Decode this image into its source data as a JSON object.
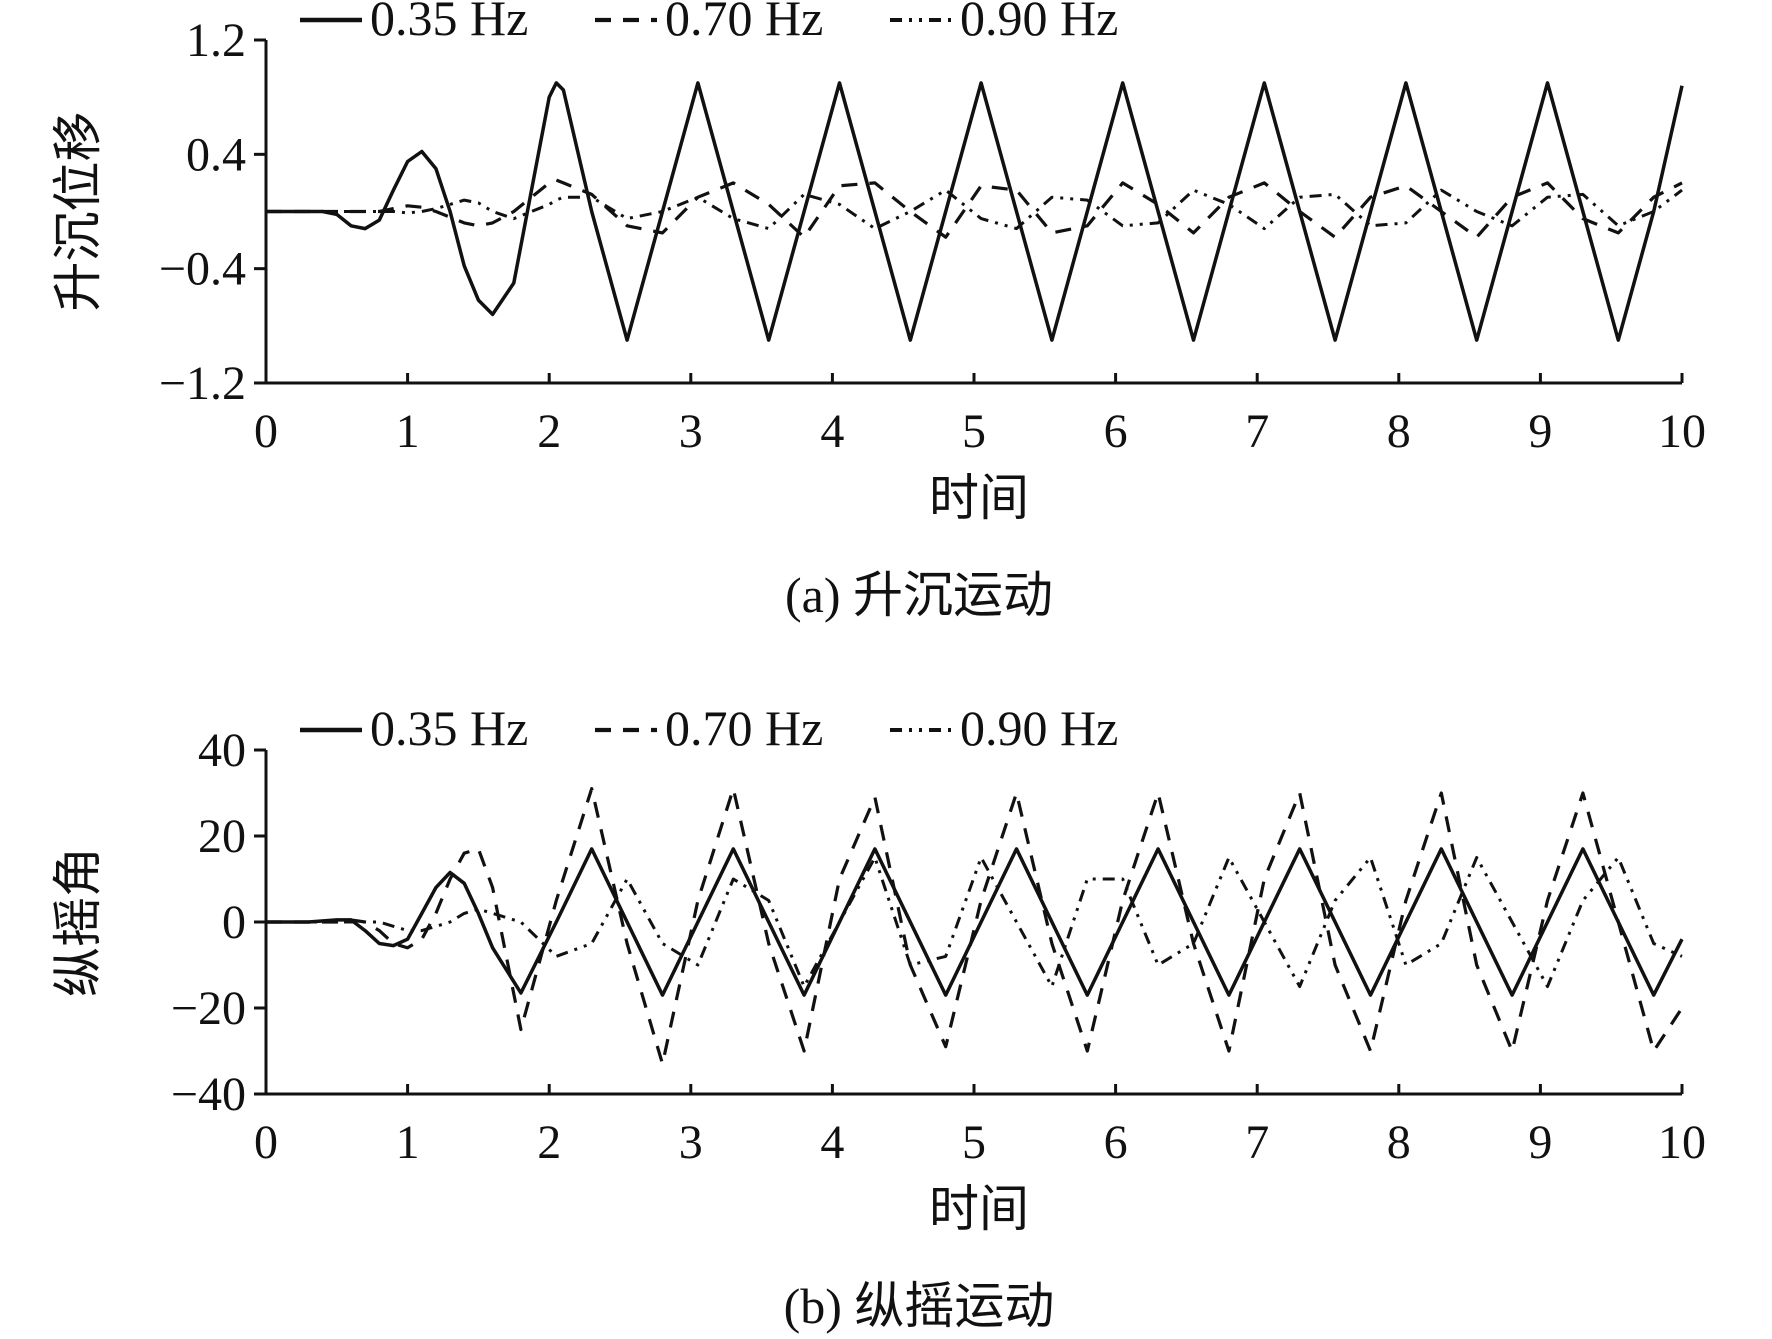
{
  "chart_data": [
    {
      "type": "line",
      "caption": "(a) 升沉运动",
      "xlabel": "时间",
      "ylabel": "升沉位移",
      "xlim": [
        0,
        10
      ],
      "ylim": [
        -1.2,
        1.2
      ],
      "x_ticks": [
        "0",
        "1",
        "2",
        "3",
        "4",
        "5",
        "6",
        "7",
        "8",
        "9",
        "10"
      ],
      "y_ticks": [
        "1.2",
        "0.4",
        "−0.4",
        "−1.2"
      ],
      "y_tick_values": [
        1.2,
        0.4,
        -0.4,
        -1.2
      ],
      "legend_position": "top",
      "grid": false,
      "x": [
        0,
        0.2,
        0.4,
        0.5,
        0.6,
        0.7,
        0.8,
        0.9,
        1.0,
        1.1,
        1.2,
        1.3,
        1.4,
        1.5,
        1.6,
        1.75,
        2.0,
        2.05,
        2.1,
        2.3,
        2.55,
        2.8,
        3.05,
        3.3,
        3.55,
        3.8,
        4.05,
        4.3,
        4.55,
        4.8,
        5.05,
        5.3,
        5.55,
        5.8,
        6.05,
        6.3,
        6.55,
        6.8,
        7.05,
        7.3,
        7.55,
        7.8,
        8.05,
        8.3,
        8.55,
        8.8,
        9.05,
        9.3,
        9.55,
        9.8,
        10.0
      ],
      "series": [
        {
          "name": "0.35 Hz",
          "style": "solid",
          "values": [
            0,
            0,
            0,
            -0.02,
            -0.1,
            -0.12,
            -0.06,
            0.15,
            0.35,
            0.42,
            0.3,
            0.0,
            -0.38,
            -0.62,
            -0.72,
            -0.5,
            0.8,
            0.9,
            0.85,
            0.0,
            -0.9,
            0.0,
            0.9,
            0.0,
            -0.9,
            0.0,
            0.9,
            0.0,
            -0.9,
            0.0,
            0.9,
            0.0,
            -0.9,
            0.0,
            0.9,
            0.0,
            -0.9,
            0.0,
            0.9,
            0.0,
            -0.9,
            0.0,
            0.9,
            0.0,
            -0.9,
            0.0,
            0.9,
            0.0,
            -0.9,
            0.0,
            0.88
          ]
        },
        {
          "name": "0.70 Hz",
          "style": "dashed",
          "values": [
            0,
            0,
            0,
            0,
            0,
            0,
            0,
            0.02,
            0.04,
            0.03,
            0.0,
            -0.04,
            -0.08,
            -0.1,
            -0.08,
            0.0,
            0.2,
            0.22,
            0.2,
            0.12,
            -0.1,
            -0.15,
            0.1,
            0.2,
            0.05,
            -0.18,
            0.18,
            0.2,
            0.0,
            -0.18,
            0.18,
            0.15,
            -0.15,
            -0.1,
            0.2,
            0.05,
            -0.15,
            0.1,
            0.2,
            0.0,
            -0.18,
            0.1,
            0.18,
            0.0,
            -0.18,
            0.1,
            0.2,
            -0.05,
            -0.15,
            0.1,
            0.2
          ]
        },
        {
          "name": "0.90 Hz",
          "style": "dash-dot-dot",
          "values": [
            0,
            0,
            0,
            0,
            0,
            0,
            0,
            0,
            -0.01,
            0.0,
            0.02,
            0.05,
            0.08,
            0.06,
            0.0,
            -0.05,
            0.05,
            0.08,
            0.1,
            0.1,
            -0.05,
            0.0,
            0.1,
            -0.05,
            -0.12,
            0.12,
            0.05,
            -0.12,
            0.0,
            0.15,
            -0.05,
            -0.12,
            0.1,
            0.08,
            -0.1,
            -0.08,
            0.15,
            0.05,
            -0.12,
            0.1,
            0.12,
            -0.1,
            -0.08,
            0.15,
            0.0,
            -0.1,
            0.1,
            0.12,
            -0.1,
            0.0,
            0.15
          ]
        }
      ]
    },
    {
      "type": "line",
      "caption": "(b) 纵摇运动",
      "xlabel": "时间",
      "ylabel": "纵摇角",
      "xlim": [
        0,
        10
      ],
      "ylim": [
        -40,
        40
      ],
      "x_ticks": [
        "0",
        "1",
        "2",
        "3",
        "4",
        "5",
        "6",
        "7",
        "8",
        "9",
        "10"
      ],
      "y_ticks": [
        "40",
        "20",
        "0",
        "−20",
        "−40"
      ],
      "y_tick_values": [
        40,
        20,
        0,
        -20,
        -40
      ],
      "legend_position": "top",
      "grid": false,
      "x": [
        0,
        0.3,
        0.5,
        0.6,
        0.7,
        0.8,
        0.9,
        1.0,
        1.1,
        1.2,
        1.3,
        1.4,
        1.5,
        1.6,
        1.8,
        2.05,
        2.3,
        2.55,
        2.8,
        3.05,
        3.3,
        3.55,
        3.8,
        4.05,
        4.3,
        4.55,
        4.8,
        5.05,
        5.3,
        5.55,
        5.8,
        6.05,
        6.3,
        6.55,
        6.8,
        7.05,
        7.3,
        7.55,
        7.8,
        8.05,
        8.3,
        8.55,
        8.8,
        9.05,
        9.3,
        9.55,
        9.8,
        10.0
      ],
      "series": [
        {
          "name": "0.35 Hz",
          "style": "solid",
          "values": [
            0,
            0,
            0.5,
            0.5,
            -2,
            -5,
            -5.5,
            -4,
            2,
            8,
            11.5,
            9,
            2,
            -6,
            -16.5,
            0,
            17,
            0,
            -17,
            0,
            17,
            0,
            -17,
            0,
            17,
            0,
            -17,
            0,
            17,
            0,
            -17,
            0,
            17,
            0,
            -17,
            0,
            17,
            0,
            -17,
            0,
            17,
            0,
            -17,
            0,
            17,
            0,
            -17,
            -4
          ]
        },
        {
          "name": "0.70 Hz",
          "style": "dashed",
          "values": [
            0,
            0,
            0,
            0.5,
            0,
            -2,
            -5,
            -6,
            -4,
            2,
            10,
            16,
            17,
            8,
            -25,
            5,
            31,
            -5,
            -33,
            5,
            31,
            -5,
            -30,
            10,
            29,
            -10,
            -29,
            5,
            30,
            -5,
            -30,
            5,
            30,
            -5,
            -30,
            10,
            30,
            -10,
            -30,
            5,
            30,
            -10,
            -30,
            5,
            30,
            0,
            -30,
            -20
          ]
        },
        {
          "name": "0.90 Hz",
          "style": "dash-dot-dot",
          "values": [
            0,
            0,
            0,
            0,
            0,
            0,
            -1,
            -2,
            -2,
            -1,
            0,
            2,
            3,
            2,
            0,
            -8,
            -5,
            10,
            -5,
            -10,
            10,
            5,
            -15,
            0,
            15,
            -10,
            -8,
            15,
            0,
            -15,
            10,
            10,
            -10,
            -5,
            15,
            0,
            -15,
            5,
            15,
            -10,
            -5,
            15,
            0,
            -15,
            5,
            15,
            -5,
            -8
          ]
        }
      ]
    }
  ]
}
